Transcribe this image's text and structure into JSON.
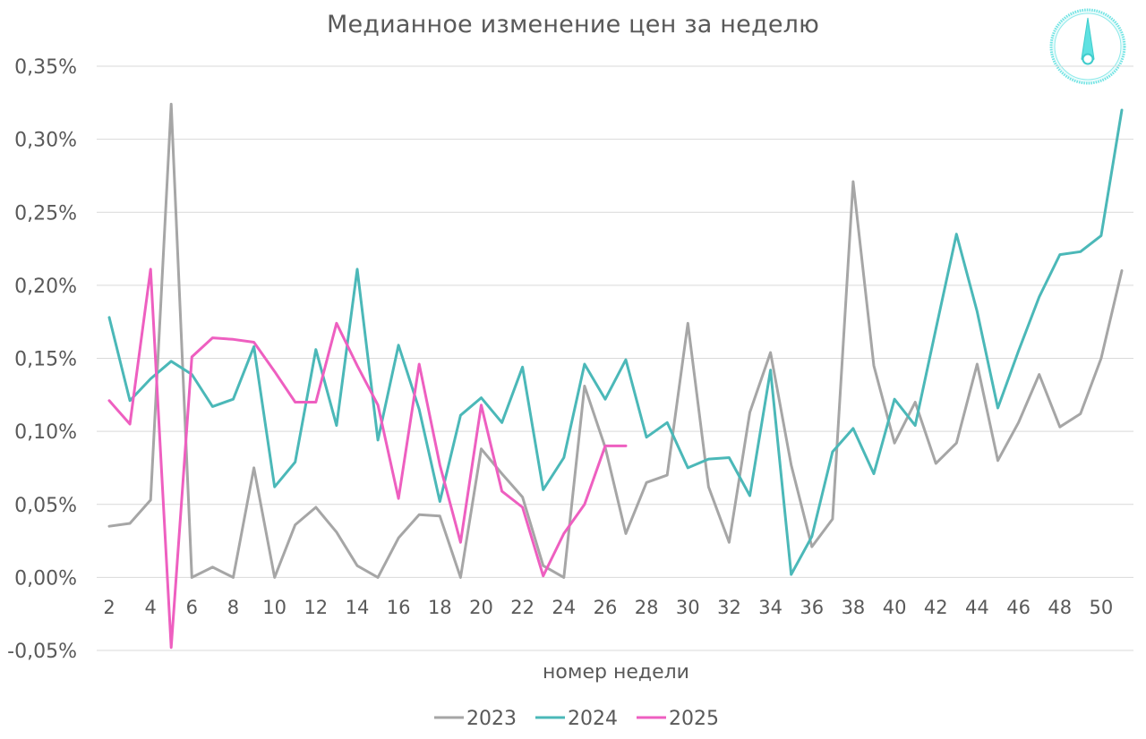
{
  "chart_data": {
    "type": "line",
    "title": "Медианное изменение цен за неделю",
    "xlabel": "номер недели",
    "ylabel": "",
    "x_range": [
      2,
      51
    ],
    "ylim": [
      -0.05,
      0.35
    ],
    "y_ticks": [
      "-0,05%",
      "0,00%",
      "0,05%",
      "0,10%",
      "0,15%",
      "0,20%",
      "0,25%",
      "0,30%",
      "0,35%"
    ],
    "y_tick_values": [
      -0.05,
      0,
      0.05,
      0.1,
      0.15,
      0.2,
      0.25,
      0.3,
      0.35
    ],
    "x_ticks": [
      "2",
      "4",
      "6",
      "8",
      "10",
      "12",
      "14",
      "16",
      "18",
      "20",
      "22",
      "24",
      "26",
      "28",
      "30",
      "32",
      "34",
      "36",
      "38",
      "40",
      "42",
      "44",
      "46",
      "48",
      "50"
    ],
    "x_tick_values": [
      2,
      4,
      6,
      8,
      10,
      12,
      14,
      16,
      18,
      20,
      22,
      24,
      26,
      28,
      30,
      32,
      34,
      36,
      38,
      40,
      42,
      44,
      46,
      48,
      50
    ],
    "grid": "horizontal",
    "legend_position": "bottom",
    "series": [
      {
        "name": "2023",
        "color": "#a6a6a6",
        "x": [
          2,
          3,
          4,
          5,
          6,
          7,
          8,
          9,
          10,
          11,
          12,
          13,
          14,
          15,
          16,
          17,
          18,
          19,
          20,
          21,
          22,
          23,
          24,
          25,
          26,
          27,
          28,
          29,
          30,
          31,
          32,
          33,
          34,
          35,
          36,
          37,
          38,
          39,
          40,
          41,
          42,
          43,
          44,
          45,
          46,
          47,
          48,
          49,
          50,
          51
        ],
        "values": [
          0.035,
          0.037,
          0.053,
          0.324,
          0.0,
          0.007,
          0.0,
          0.075,
          0.0,
          0.036,
          0.048,
          0.031,
          0.008,
          0.0,
          0.027,
          0.043,
          0.042,
          0.0,
          0.088,
          0.071,
          0.055,
          0.008,
          0.0,
          0.131,
          0.089,
          0.03,
          0.065,
          0.07,
          0.174,
          0.062,
          0.024,
          0.113,
          0.154,
          0.077,
          0.021,
          0.04,
          0.271,
          0.145,
          0.092,
          0.12,
          0.078,
          0.092,
          0.146,
          0.08,
          0.106,
          0.139,
          0.103,
          0.112,
          0.15,
          0.21
        ]
      },
      {
        "name": "2024",
        "color": "#4bb8b8",
        "x": [
          2,
          3,
          4,
          5,
          6,
          7,
          8,
          9,
          10,
          11,
          12,
          13,
          14,
          15,
          16,
          17,
          18,
          19,
          20,
          21,
          22,
          23,
          24,
          25,
          26,
          27,
          28,
          29,
          30,
          31,
          32,
          33,
          34,
          35,
          36,
          37,
          38,
          39,
          40,
          41,
          42,
          43,
          44,
          45,
          46,
          47,
          48,
          49,
          50,
          51
        ],
        "values": [
          0.178,
          0.121,
          0.136,
          0.148,
          0.139,
          0.117,
          0.122,
          0.158,
          0.062,
          0.079,
          0.156,
          0.104,
          0.211,
          0.094,
          0.159,
          0.115,
          0.052,
          0.111,
          0.123,
          0.106,
          0.144,
          0.06,
          0.082,
          0.146,
          0.122,
          0.149,
          0.096,
          0.106,
          0.075,
          0.081,
          0.082,
          0.056,
          0.142,
          0.002,
          0.028,
          0.086,
          0.102,
          0.071,
          0.122,
          0.104,
          0.17,
          0.235,
          0.182,
          0.116,
          0.155,
          0.192,
          0.221,
          0.223,
          0.234,
          0.32
        ]
      },
      {
        "name": "2025",
        "color": "#ee5fc0",
        "x": [
          2,
          3,
          4,
          5,
          6,
          7,
          8,
          9,
          10,
          11,
          12,
          13,
          14,
          15,
          16,
          17,
          18,
          19,
          20,
          21,
          22,
          23,
          24,
          25,
          26,
          27
        ],
        "values": [
          0.121,
          0.105,
          0.211,
          -0.048,
          0.151,
          0.164,
          0.163,
          0.161,
          0.141,
          0.12,
          0.12,
          0.174,
          0.145,
          0.118,
          0.054,
          0.146,
          0.077,
          0.024,
          0.118,
          0.059,
          0.048,
          0.001,
          0.03,
          0.05,
          0.09,
          0.09
        ]
      }
    ]
  },
  "brand": {
    "logo_icon": "compass-needle-icon",
    "logo_color": "#5ce6e6"
  }
}
